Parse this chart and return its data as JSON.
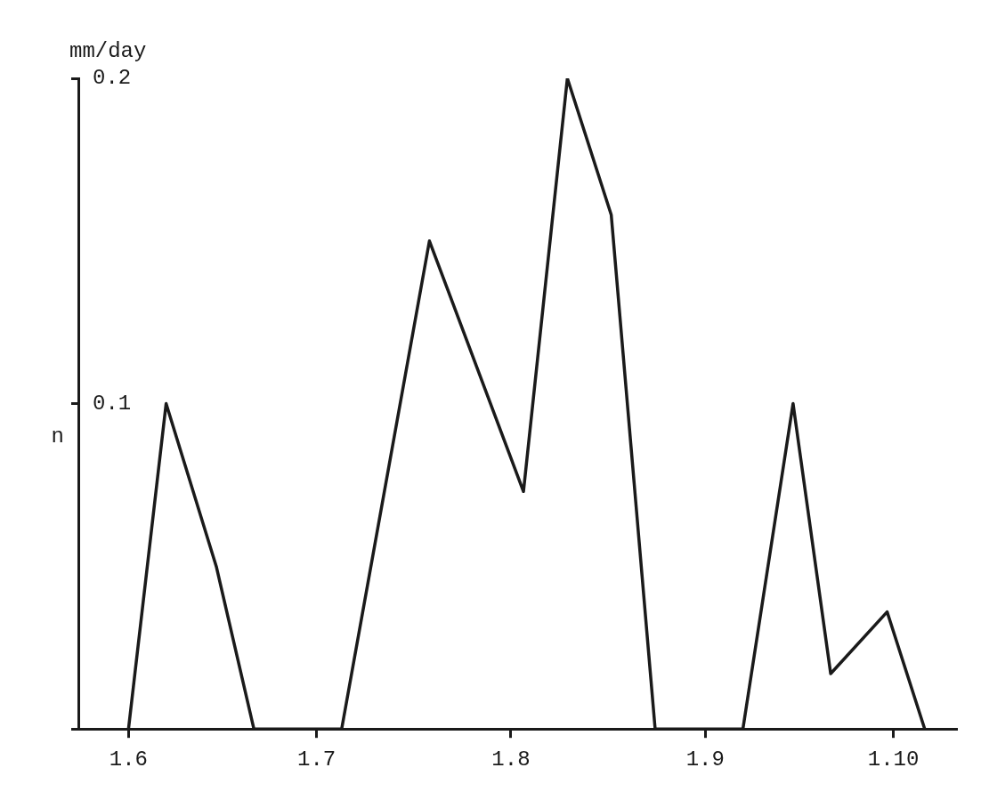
{
  "chart_data": {
    "type": "line",
    "ylabel": "mm/day",
    "annotations": [
      "n"
    ],
    "x": [
      "--06-01",
      "--06-07",
      "--06-15",
      "--06-21",
      "--07-05",
      "--07-19",
      "--08-03",
      "--08-10",
      "--08-17",
      "--08-24",
      "--09-07",
      "--09-15",
      "--09-21",
      "--09-30",
      "--10-06"
    ],
    "values": [
      0,
      0.1,
      0.05,
      0,
      0,
      0.15,
      0.073,
      0.2,
      0.158,
      0,
      0,
      0.1,
      0.017,
      0.036,
      0
    ],
    "color": "#1a1a1a",
    "xlim": [
      "--05-24",
      "--10-11"
    ],
    "xticks": [
      {
        "value": "--06-01",
        "label": "1.6"
      },
      {
        "value": "--07-01",
        "label": "1.7"
      },
      {
        "value": "--08-01",
        "label": "1.8"
      },
      {
        "value": "--09-01",
        "label": "1.9"
      },
      {
        "value": "--10-01",
        "label": "1.10"
      }
    ],
    "ylim": [
      0,
      0.2
    ],
    "yticks": [
      {
        "value": 0,
        "label": null
      },
      0.1,
      0.2
    ],
    "grid": false,
    "legend": false,
    "marker": "none",
    "line_style": "solid"
  }
}
